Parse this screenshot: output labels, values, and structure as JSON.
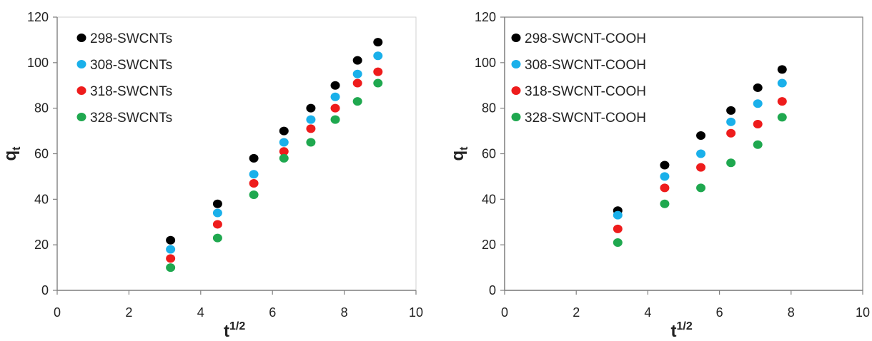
{
  "chart_data": [
    {
      "type": "scatter",
      "title": "",
      "xlabel": {
        "base": "t",
        "sup": "1/2"
      },
      "ylabel": {
        "base": "q",
        "sub": "t"
      },
      "xlim": [
        0,
        10
      ],
      "ylim": [
        0,
        120
      ],
      "xticks": [
        "0",
        "2",
        "4",
        "6",
        "8",
        "10"
      ],
      "yticks": [
        "0",
        "20",
        "40",
        "60",
        "80",
        "100",
        "120"
      ],
      "grid": false,
      "legend_position": "top-left",
      "x": [
        3.16,
        4.47,
        5.48,
        6.32,
        7.07,
        7.75,
        8.37,
        8.94
      ],
      "series": [
        {
          "name": "298-SWCNTs",
          "color": "#000000",
          "values": [
            22,
            38,
            58,
            70,
            80,
            90,
            101,
            109
          ]
        },
        {
          "name": "308-SWCNTs",
          "color": "#1ab0ea",
          "values": [
            18,
            34,
            51,
            65,
            75,
            85,
            95,
            103
          ]
        },
        {
          "name": "318-SWCNTs",
          "color": "#ee1c1c",
          "values": [
            14,
            29,
            47,
            61,
            71,
            80,
            91,
            96
          ]
        },
        {
          "name": "328-SWCNTs",
          "color": "#1fa84f",
          "values": [
            10,
            23,
            42,
            58,
            65,
            75,
            83,
            91
          ]
        }
      ]
    },
    {
      "type": "scatter",
      "title": "",
      "xlabel": {
        "base": "t",
        "sup": "1/2"
      },
      "ylabel": {
        "base": "q",
        "sub": "t"
      },
      "xlim": [
        0,
        10
      ],
      "ylim": [
        0,
        120
      ],
      "xticks": [
        "0",
        "2",
        "4",
        "6",
        "8",
        "10"
      ],
      "yticks": [
        "0",
        "20",
        "40",
        "60",
        "80",
        "100",
        "120"
      ],
      "grid": false,
      "legend_position": "top-left",
      "x": [
        3.16,
        4.47,
        5.48,
        6.32,
        7.07,
        7.75
      ],
      "series": [
        {
          "name": "298-SWCNT-COOH",
          "color": "#000000",
          "values": [
            35,
            55,
            68,
            79,
            89,
            97
          ]
        },
        {
          "name": "308-SWCNT-COOH",
          "color": "#1ab0ea",
          "values": [
            33,
            50,
            60,
            74,
            82,
            91
          ]
        },
        {
          "name": "318-SWCNT-COOH",
          "color": "#ee1c1c",
          "values": [
            27,
            45,
            54,
            69,
            73,
            83
          ]
        },
        {
          "name": "328-SWCNT-COOH",
          "color": "#1fa84f",
          "values": [
            21,
            38,
            45,
            56,
            64,
            76
          ]
        }
      ]
    }
  ]
}
